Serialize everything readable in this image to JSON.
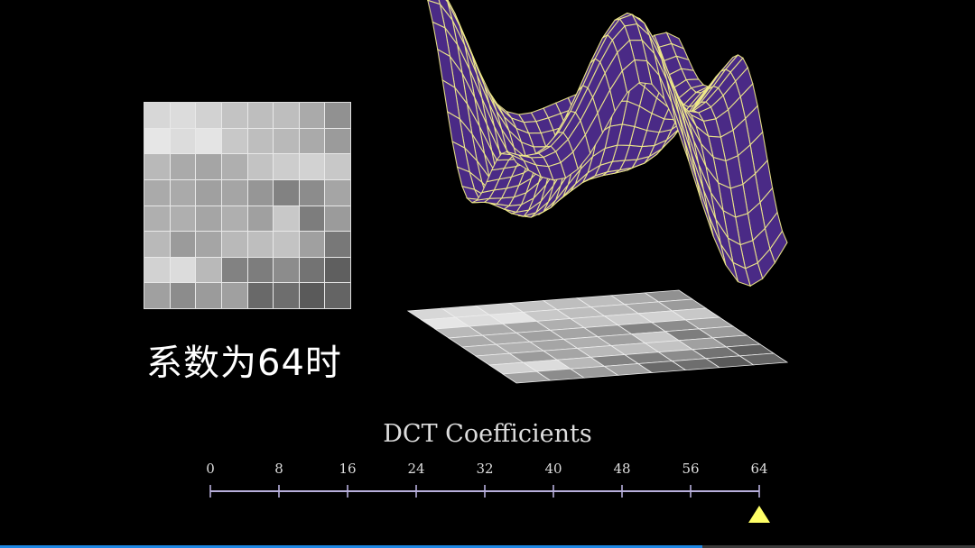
{
  "caption": "系数为64时",
  "axis": {
    "title": "DCT Coefficients",
    "ticks": [
      "0",
      "8",
      "16",
      "24",
      "32",
      "40",
      "48",
      "56",
      "64"
    ],
    "min": 0,
    "max": 64,
    "marker_value": 64,
    "marker_color": "#ffff66",
    "line_color": "#b8b0dc"
  },
  "pixel_block": {
    "rows": 8,
    "cols": 8,
    "gray_values": [
      [
        215,
        220,
        210,
        195,
        190,
        190,
        170,
        145
      ],
      [
        230,
        220,
        228,
        200,
        190,
        185,
        170,
        155
      ],
      [
        185,
        170,
        165,
        175,
        195,
        205,
        210,
        200
      ],
      [
        170,
        170,
        160,
        165,
        150,
        130,
        140,
        165
      ],
      [
        175,
        175,
        165,
        175,
        160,
        200,
        125,
        155
      ],
      [
        185,
        155,
        165,
        185,
        190,
        195,
        160,
        120
      ],
      [
        210,
        220,
        185,
        130,
        125,
        140,
        115,
        95
      ],
      [
        160,
        140,
        155,
        160,
        105,
        110,
        90,
        100
      ]
    ]
  },
  "surface": {
    "fill_color": "#4a2a86",
    "wire_color": "#f2ec8a"
  },
  "video_progress_percent": 72,
  "colors": {
    "background": "#000000",
    "progress": "#1e88e5"
  }
}
